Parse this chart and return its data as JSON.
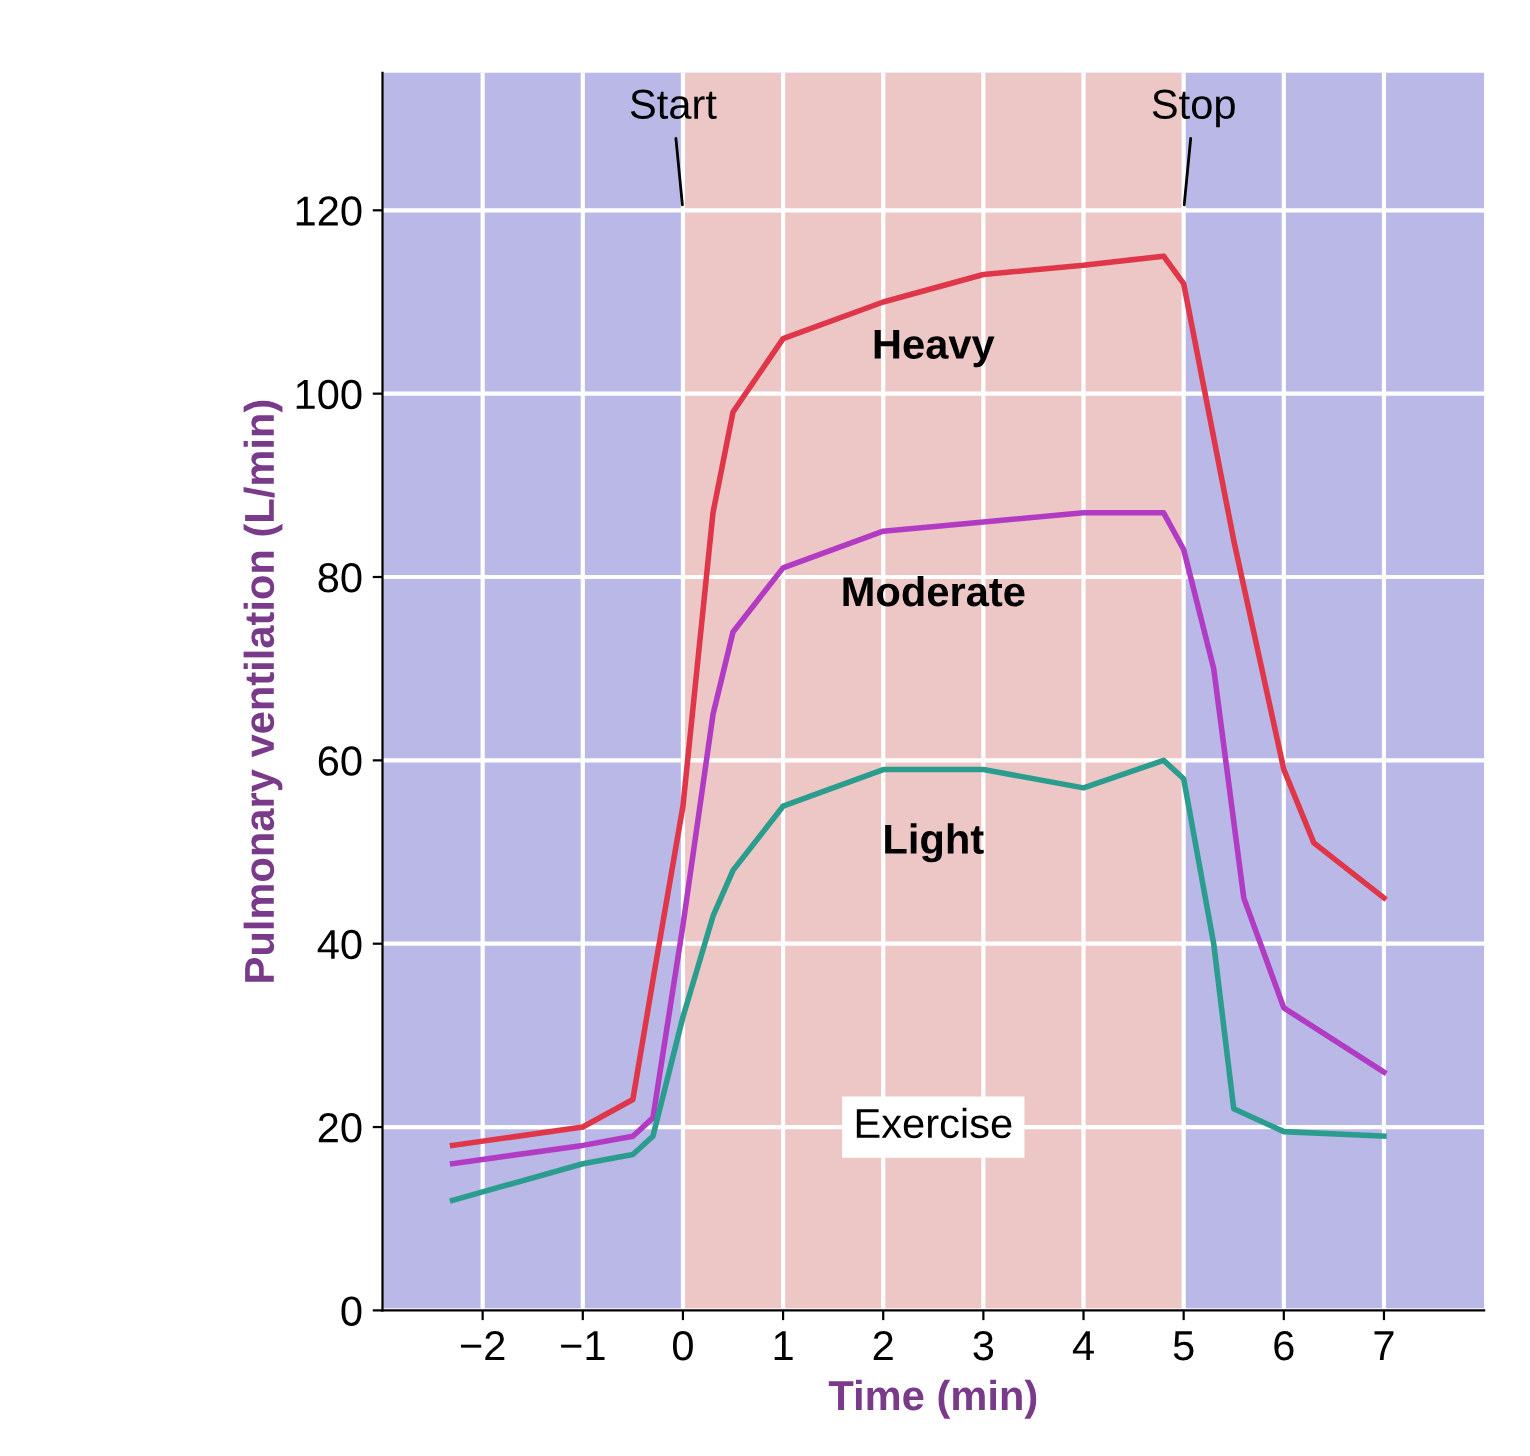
{
  "chart_data": {
    "type": "line",
    "xlabel": "Time (min)",
    "ylabel": "Pulmonary ventilation (L/min)",
    "xlim": [
      -3.0,
      8.0
    ],
    "ylim": [
      0,
      135
    ],
    "xticks": [
      {
        "value": -2,
        "label": "−2"
      },
      {
        "value": -1,
        "label": "−1"
      },
      0,
      1,
      2,
      3,
      4,
      5,
      6,
      7
    ],
    "yticks": [
      0,
      20,
      40,
      60,
      80,
      100,
      120
    ],
    "grid": true,
    "legend": false,
    "marker": "none",
    "line_style": "solid",
    "bands": [
      {
        "axis": "x",
        "from": 0,
        "to": 5,
        "label": "Exercise",
        "color": "#f6c9c0"
      }
    ],
    "annotations": [
      {
        "text": "Start",
        "x": 0,
        "y": 120
      },
      {
        "text": "Stop",
        "x": 5,
        "y": 120
      }
    ],
    "series": [
      {
        "name": "Heavy",
        "color": "#e0364a",
        "x": [
          -2.3,
          -1,
          -0.5,
          -0.3,
          0,
          0.3,
          0.5,
          1,
          2,
          3,
          4,
          4.8,
          5,
          5.5,
          6,
          6.3,
          7
        ],
        "values": [
          18,
          20,
          23,
          36,
          55,
          87,
          98,
          106,
          110,
          113,
          114,
          115,
          112,
          84,
          59,
          51,
          45
        ]
      },
      {
        "name": "Moderate",
        "color": "#b23bc4",
        "x": [
          -2.3,
          -1,
          -0.5,
          -0.3,
          0,
          0.3,
          0.5,
          1,
          2,
          3,
          4,
          4.8,
          5,
          5.3,
          5.6,
          6,
          7
        ],
        "values": [
          16,
          18,
          19,
          21,
          42,
          65,
          74,
          81,
          85,
          86,
          87,
          87,
          83,
          70,
          45,
          33,
          26
        ]
      },
      {
        "name": "Light",
        "color": "#2a9d8f",
        "x": [
          -2.3,
          -1,
          -0.5,
          -0.3,
          0,
          0.3,
          0.5,
          1,
          2,
          3,
          4,
          4.8,
          5,
          5.3,
          5.5,
          6,
          7
        ],
        "values": [
          12,
          16,
          17,
          19,
          32,
          43,
          48,
          55,
          59,
          59,
          57,
          60,
          58,
          40,
          22,
          19.5,
          19
        ]
      }
    ]
  }
}
